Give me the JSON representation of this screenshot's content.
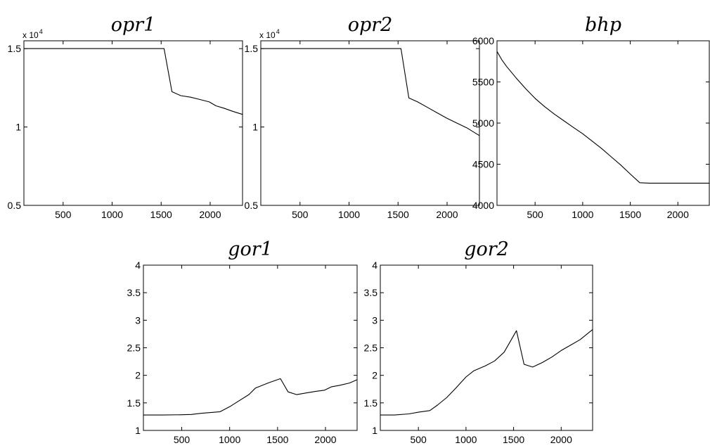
{
  "chart_data": [
    {
      "id": "opr1",
      "type": "line",
      "title": "opr1",
      "xlim": [
        100,
        2330
      ],
      "ylim": [
        0.5,
        1.55
      ],
      "y_scale_label": "x 10",
      "y_scale_exponent": "4",
      "x_ticks": [
        500,
        1000,
        1500,
        2000
      ],
      "x_tick_labels": [
        "500",
        "1000",
        "1500",
        "2000"
      ],
      "y_ticks": [
        0.5,
        1,
        1.5
      ],
      "y_tick_labels": [
        "0.5",
        "1",
        "1.5"
      ],
      "series": [
        {
          "x": [
            100,
            1530,
            1610,
            1700,
            1800,
            1900,
            1990,
            2060,
            2140,
            2230,
            2330
          ],
          "y": [
            1.5,
            1.5,
            1.225,
            1.2,
            1.19,
            1.175,
            1.16,
            1.135,
            1.12,
            1.1,
            1.08
          ]
        }
      ]
    },
    {
      "id": "opr2",
      "type": "line",
      "title": "opr2",
      "xlim": [
        100,
        2330
      ],
      "ylim": [
        0.5,
        1.55
      ],
      "y_scale_label": "x 10",
      "y_scale_exponent": "4",
      "x_ticks": [
        500,
        1000,
        1500,
        2000
      ],
      "x_tick_labels": [
        "500",
        "1000",
        "1500",
        "2000"
      ],
      "y_ticks": [
        0.5,
        1,
        1.5
      ],
      "y_tick_labels": [
        "0.5",
        "1",
        "1.5"
      ],
      "series": [
        {
          "x": [
            100,
            1530,
            1610,
            1700,
            1800,
            1900,
            2000,
            2100,
            2200,
            2330
          ],
          "y": [
            1.5,
            1.5,
            1.185,
            1.16,
            1.125,
            1.09,
            1.055,
            1.025,
            0.995,
            0.945
          ]
        }
      ]
    },
    {
      "id": "bhp",
      "type": "line",
      "title": "bhp",
      "xlim": [
        100,
        2330
      ],
      "ylim": [
        4000,
        6000
      ],
      "x_ticks": [
        500,
        1000,
        1500,
        2000
      ],
      "x_tick_labels": [
        "500",
        "1000",
        "1500",
        "2000"
      ],
      "y_ticks": [
        4000,
        4500,
        5000,
        5500,
        6000
      ],
      "y_tick_labels": [
        "4000",
        "4500",
        "5000",
        "5500",
        "6000"
      ],
      "series": [
        {
          "x": [
            100,
            150,
            200,
            300,
            400,
            500,
            600,
            700,
            800,
            900,
            1000,
            1100,
            1200,
            1300,
            1400,
            1500,
            1600,
            1700,
            2000,
            2330
          ],
          "y": [
            5870,
            5770,
            5690,
            5550,
            5420,
            5300,
            5200,
            5110,
            5030,
            4950,
            4870,
            4780,
            4690,
            4590,
            4490,
            4380,
            4275,
            4270,
            4270,
            4270
          ]
        }
      ]
    },
    {
      "id": "gor1",
      "type": "line",
      "title": "gor1",
      "xlim": [
        100,
        2330
      ],
      "ylim": [
        1,
        4
      ],
      "x_ticks": [
        500,
        1000,
        1500,
        2000
      ],
      "x_tick_labels": [
        "500",
        "1000",
        "1500",
        "2000"
      ],
      "y_ticks": [
        1,
        1.5,
        2,
        2.5,
        3,
        3.5,
        4
      ],
      "y_tick_labels": [
        "1",
        "1.5",
        "2",
        "2.5",
        "3",
        "3.5",
        "4"
      ],
      "series": [
        {
          "x": [
            100,
            300,
            500,
            600,
            700,
            900,
            1000,
            1100,
            1200,
            1270,
            1400,
            1530,
            1610,
            1700,
            1800,
            1900,
            1990,
            2060,
            2150,
            2250,
            2330
          ],
          "y": [
            1.28,
            1.28,
            1.285,
            1.29,
            1.31,
            1.34,
            1.43,
            1.54,
            1.65,
            1.77,
            1.86,
            1.94,
            1.7,
            1.65,
            1.68,
            1.71,
            1.73,
            1.79,
            1.82,
            1.86,
            1.92
          ]
        }
      ]
    },
    {
      "id": "gor2",
      "type": "line",
      "title": "gor2",
      "xlim": [
        100,
        2330
      ],
      "ylim": [
        1,
        4
      ],
      "x_ticks": [
        500,
        1000,
        1500,
        2000
      ],
      "x_tick_labels": [
        "500",
        "1000",
        "1500",
        "2000"
      ],
      "y_ticks": [
        1,
        1.5,
        2,
        2.5,
        3,
        3.5,
        4
      ],
      "y_tick_labels": [
        "1",
        "1.5",
        "2",
        "2.5",
        "3",
        "3.5",
        "4"
      ],
      "series": [
        {
          "x": [
            100,
            250,
            400,
            500,
            620,
            700,
            800,
            900,
            1000,
            1080,
            1200,
            1300,
            1400,
            1530,
            1610,
            1700,
            1800,
            1900,
            2000,
            2100,
            2200,
            2330
          ],
          "y": [
            1.28,
            1.28,
            1.3,
            1.33,
            1.36,
            1.46,
            1.6,
            1.78,
            1.97,
            2.08,
            2.17,
            2.26,
            2.42,
            2.81,
            2.2,
            2.15,
            2.23,
            2.33,
            2.45,
            2.55,
            2.65,
            2.83
          ]
        }
      ]
    }
  ]
}
